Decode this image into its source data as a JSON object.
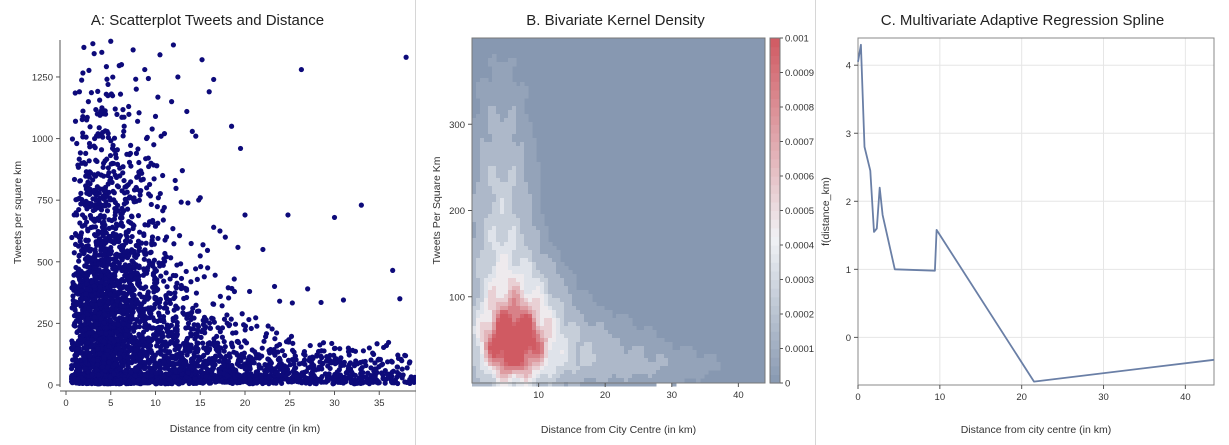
{
  "chart_data": [
    {
      "type": "scatter",
      "title": "A: Scatterplot Tweets and Distance",
      "xlabel": "Distance from city centre (in km)",
      "ylabel": "Tweets per square km",
      "xlim": [
        0,
        40
      ],
      "ylim": [
        0,
        1400
      ],
      "xticks": [
        0,
        5,
        10,
        15,
        20,
        25,
        30,
        35,
        40
      ],
      "yticks": [
        0,
        250,
        500,
        750,
        1000,
        1250
      ],
      "color": "#0d0a7a",
      "points": [
        [
          1.5,
          1190
        ],
        [
          2.0,
          1370
        ],
        [
          3.0,
          1385
        ],
        [
          4.0,
          1350
        ],
        [
          5.0,
          1395
        ],
        [
          6.2,
          1300
        ],
        [
          7.5,
          1360
        ],
        [
          8.8,
          1280
        ],
        [
          10.5,
          1340
        ],
        [
          12.0,
          1380
        ],
        [
          12.5,
          1250
        ],
        [
          15.2,
          1320
        ],
        [
          16.5,
          1240
        ],
        [
          2.5,
          1150
        ],
        [
          3.5,
          1100
        ],
        [
          4.5,
          1180
        ],
        [
          5.5,
          1120
        ],
        [
          6.5,
          1050
        ],
        [
          7.0,
          1130
        ],
        [
          8.0,
          1070
        ],
        [
          9.0,
          1000
        ],
        [
          10.0,
          1090
        ],
        [
          11.0,
          1020
        ],
        [
          11.8,
          1150
        ],
        [
          13.5,
          1110
        ],
        [
          14.5,
          1010
        ],
        [
          16.0,
          1190
        ],
        [
          18.5,
          1050
        ],
        [
          19.5,
          960
        ],
        [
          1.2,
          980
        ],
        [
          2.2,
          940
        ],
        [
          3.2,
          1000
        ],
        [
          4.2,
          900
        ],
        [
          5.2,
          960
        ],
        [
          6.0,
          880
        ],
        [
          7.2,
          940
        ],
        [
          8.2,
          860
        ],
        [
          9.5,
          900
        ],
        [
          10.8,
          850
        ],
        [
          12.2,
          830
        ],
        [
          13.0,
          870
        ],
        [
          15.0,
          760
        ],
        [
          16.5,
          640
        ],
        [
          17.2,
          625
        ],
        [
          17.8,
          600
        ],
        [
          18.8,
          430
        ],
        [
          20.0,
          690
        ],
        [
          22.0,
          550
        ],
        [
          23.3,
          400
        ],
        [
          24.8,
          690
        ],
        [
          26.3,
          1280
        ],
        [
          27.0,
          390
        ],
        [
          28.5,
          335
        ],
        [
          30.0,
          680
        ],
        [
          31.0,
          345
        ],
        [
          33.0,
          730
        ],
        [
          36.5,
          465
        ],
        [
          37.3,
          350
        ],
        [
          38.0,
          1330
        ]
      ],
      "dense_clusters": [
        {
          "center": [
            3,
            150
          ],
          "spread": [
            2.5,
            220
          ],
          "count": 1400
        },
        {
          "center": [
            6,
            250
          ],
          "spread": [
            4.0,
            320
          ],
          "count": 900
        },
        {
          "center": [
            10,
            80
          ],
          "spread": [
            5.5,
            150
          ],
          "count": 700
        },
        {
          "center": [
            18,
            40
          ],
          "spread": [
            6.0,
            70
          ],
          "count": 450
        },
        {
          "center": [
            30,
            35
          ],
          "spread": [
            6.5,
            60
          ],
          "count": 300
        },
        {
          "center": [
            3,
            650
          ],
          "spread": [
            2.5,
            300
          ],
          "count": 400
        }
      ]
    },
    {
      "type": "heatmap",
      "title": "B. Bivariate Kernel Density",
      "xlabel": "Distance from City Centre (in km)",
      "ylabel": "Tweets Per Square Km",
      "xlim": [
        0,
        44
      ],
      "ylim": [
        0,
        400
      ],
      "xticks": [
        10,
        20,
        30,
        40
      ],
      "yticks": [
        100,
        200,
        300
      ],
      "colorbar_ticks": [
        "0",
        "0.0001",
        "0.0002",
        "0.0003",
        "0.0004",
        "0.0005",
        "0.0006",
        "0.0007",
        "0.0008",
        "0.0009",
        "0.001"
      ],
      "colors": {
        "low": "#8798b1",
        "mid": "#f0f2f5",
        "high": "#d05a62"
      },
      "peaks": [
        {
          "center": [
            6,
            45
          ],
          "spread": [
            2.5,
            22
          ],
          "density": 0.00095
        },
        {
          "center": [
            7.5,
            70
          ],
          "spread": [
            4,
            45
          ],
          "density": 0.0005
        },
        {
          "center": [
            4.5,
            160
          ],
          "spread": [
            3,
            110
          ],
          "density": 0.00028
        },
        {
          "center": [
            12,
            40
          ],
          "spread": [
            9,
            30
          ],
          "density": 0.00018
        },
        {
          "center": [
            25,
            20
          ],
          "spread": [
            10,
            15
          ],
          "density": 8e-05
        }
      ]
    },
    {
      "type": "line",
      "title": "C. Multivariate Adaptive Regression Spline",
      "xlabel": "Distance from city centre (in km)",
      "ylabel": "f(distance_km)",
      "xlim": [
        0,
        43.5
      ],
      "ylim": [
        -0.7,
        4.4
      ],
      "xticks": [
        0,
        10,
        20,
        30,
        40
      ],
      "yticks": [
        0,
        1,
        2,
        3,
        4
      ],
      "color": "#6a7fa6",
      "x": [
        0,
        0.35,
        0.8,
        1.5,
        1.95,
        2.3,
        2.65,
        3.0,
        4.5,
        9.4,
        9.6,
        21.5,
        43.5
      ],
      "y": [
        4.05,
        4.3,
        2.8,
        2.45,
        1.55,
        1.6,
        2.2,
        1.8,
        1.0,
        0.98,
        1.58,
        -0.65,
        -0.33
      ]
    }
  ]
}
